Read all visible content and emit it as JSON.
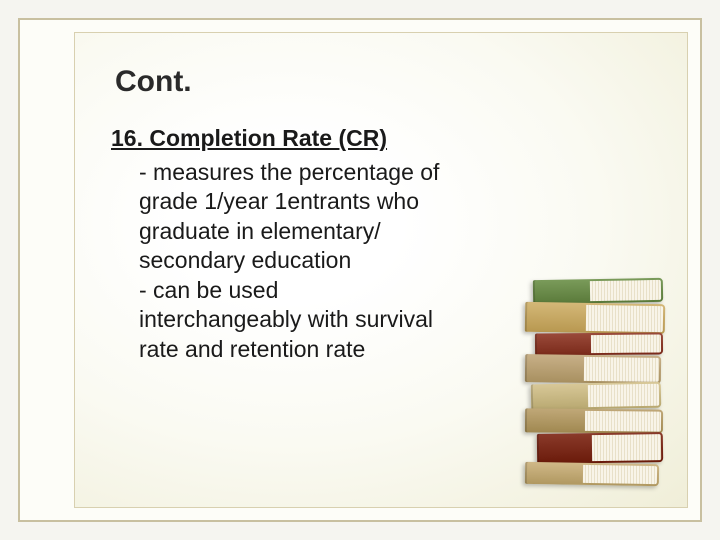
{
  "slide": {
    "title": "Cont.",
    "heading": "16. Completion Rate (CR)",
    "body": "     - measures the percentage   of\ngrade 1/year 1entrants      who\ngraduate in      elementary/\nsecondary        education\n   - can be used\n   interchangeably with survival\n   rate and retention rate"
  },
  "style": {
    "outer_bg": "#f5f5f0",
    "frame_border": "#c8c0a0",
    "inner_border": "#d8d0b0",
    "title_color": "#2a2a2a",
    "text_color": "#1a1a1a",
    "title_fontsize": 30,
    "body_fontsize": 23
  }
}
